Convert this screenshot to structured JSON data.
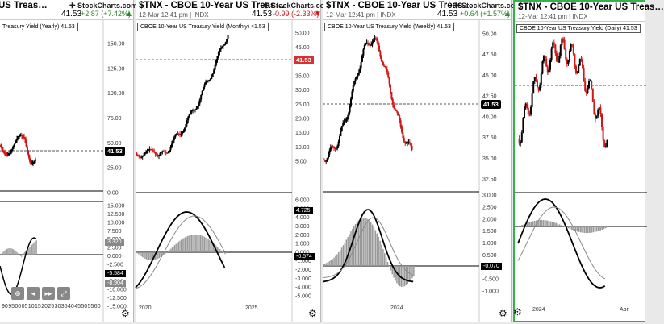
{
  "symbol": "$TNX",
  "name": "CBOE 10-Year US Treasury Yield",
  "exchange": "INDX",
  "brand": "StockCharts.com",
  "colors": {
    "up": "#2a8a2a",
    "down": "#d01818",
    "active_border": "#2fb34a"
  },
  "panels": [
    {
      "id": "yearly",
      "title_short": "US Treas…",
      "price": "41.53",
      "change": "+2.87 (+7.42%)",
      "direction": "up",
      "title_box": "Treasury Yield (Yearly) 41.53",
      "axis_labels": [
        "150.00",
        "125.00",
        "100.00",
        "75.00",
        "50.00",
        "25.00",
        "0.00"
      ],
      "price_tag": "41.53",
      "macd_labels": [
        "15.000",
        "12.500",
        "10.000",
        "7.500",
        "5.000",
        "2.500",
        "0.000",
        "-2.500",
        "-5.000",
        "-7.500",
        "-10.000",
        "-12.500",
        "-15.000"
      ],
      "macd_tags": [
        "3.320",
        "-5.584",
        "-8.904"
      ],
      "x_labels": [
        "90",
        "95",
        "00",
        "05",
        "10",
        "15",
        "20",
        "25",
        "30",
        "35",
        "40",
        "45",
        "50",
        "55",
        "60"
      ]
    },
    {
      "id": "monthly",
      "title_short": "$TNX - CBOE 10-Year US Treas…",
      "date": "12-Mar 12:41 pm | INDX",
      "price": "41.53",
      "change": "-0.99 (-2.33%)",
      "direction": "down",
      "title_box": "CBOE 10-Year US Treasury Yield (Monthly) 41.53",
      "axis_labels": [
        "50.00",
        "45.00",
        "40.00",
        "35.00",
        "30.00",
        "25.00",
        "20.00",
        "15.00",
        "10.00",
        "5.00"
      ],
      "price_tag": "41.53",
      "macd_labels": [
        "6.000",
        "5.000",
        "4.000",
        "3.000",
        "2.000",
        "1.000",
        "0.000",
        "-1.000",
        "-2.000",
        "-3.000",
        "-4.000",
        "-5.000"
      ],
      "macd_tags": [
        "4.725",
        "-0.574"
      ],
      "x_labels": [
        "2020",
        "2025"
      ]
    },
    {
      "id": "weekly",
      "title_short": "$TNX - CBOE 10-Year US Treas…",
      "date": "12-Mar 12:41 pm | INDX",
      "price": "41.53",
      "change": "+0.64 (+1.57%)",
      "direction": "up",
      "title_box": "CBOE 10-Year US Treasury Yield (Weekly) 41.53",
      "axis_labels": [
        "50.00",
        "47.50",
        "45.00",
        "42.50",
        "40.00",
        "37.50",
        "35.00",
        "32.50"
      ],
      "price_tag": "41.53",
      "macd_labels": [
        "3.000",
        "2.500",
        "2.000",
        "1.500",
        "1.000",
        "0.500",
        "0.000",
        "-0.500",
        "-1.000"
      ],
      "macd_tags": [
        "-0.070"
      ],
      "x_labels": [
        "2024"
      ]
    },
    {
      "id": "daily",
      "title_short": "$TNX - CBOE 10-Year US Treas…",
      "date": "12-Mar 12:41 pm | INDX",
      "title_box": "CBOE 10-Year US Treasury Yield (Daily) 41.53",
      "x_labels": [
        "2024",
        "Apr"
      ]
    }
  ]
}
